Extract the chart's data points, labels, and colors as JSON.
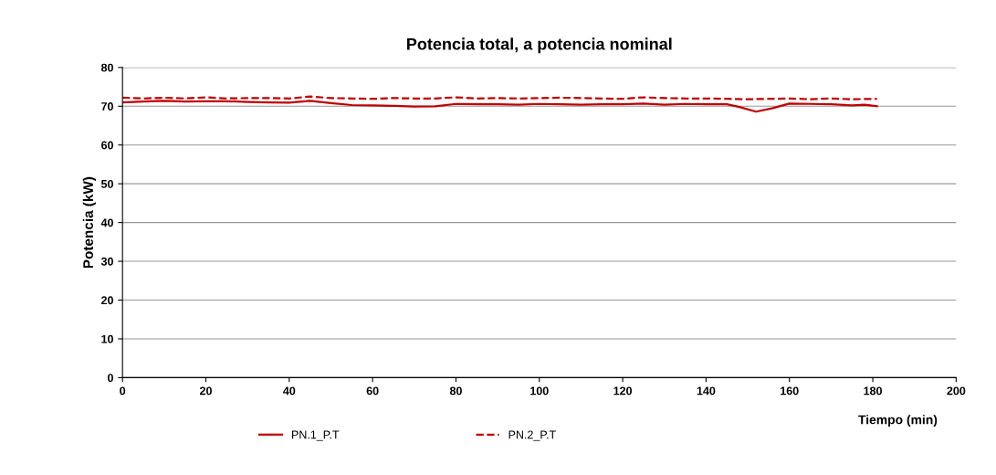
{
  "chart_data": {
    "type": "line",
    "title": "Potencia total, a potencia nominal",
    "xlabel": "Tiempo (min)",
    "ylabel": "Potencia (kW)",
    "xlim": [
      0,
      200
    ],
    "xticks": [
      0,
      20,
      40,
      60,
      80,
      100,
      120,
      140,
      160,
      180,
      200
    ],
    "ylim": [
      0,
      80
    ],
    "yticks": [
      0,
      10,
      20,
      30,
      40,
      50,
      60,
      70,
      80
    ],
    "grid": "y",
    "legend": "bottom left",
    "marker": "none",
    "series": [
      {
        "name": "PN.1_P.T",
        "color": "#c00000",
        "line_style": "solid",
        "x": [
          0,
          5,
          10,
          15,
          20,
          25,
          30,
          35,
          40,
          45,
          50,
          55,
          60,
          65,
          70,
          75,
          80,
          85,
          90,
          95,
          100,
          105,
          110,
          115,
          120,
          125,
          130,
          135,
          140,
          145,
          148,
          152,
          156,
          160,
          165,
          170,
          175,
          178,
          181
        ],
        "values": [
          71.0,
          71.2,
          71.4,
          71.2,
          71.3,
          71.3,
          71.1,
          71.0,
          70.9,
          71.4,
          70.8,
          70.3,
          70.2,
          70.1,
          69.9,
          70.0,
          70.6,
          70.5,
          70.5,
          70.4,
          70.6,
          70.5,
          70.4,
          70.5,
          70.5,
          70.7,
          70.4,
          70.6,
          70.5,
          70.5,
          69.8,
          68.6,
          69.5,
          70.7,
          70.6,
          70.5,
          70.2,
          70.4,
          70.0
        ]
      },
      {
        "name": "PN.2_P.T",
        "color": "#c00000",
        "line_style": "dashed",
        "x": [
          0,
          5,
          10,
          15,
          20,
          25,
          30,
          35,
          40,
          45,
          50,
          55,
          60,
          65,
          70,
          75,
          80,
          85,
          90,
          95,
          100,
          105,
          110,
          115,
          120,
          125,
          130,
          135,
          140,
          145,
          150,
          155,
          160,
          165,
          170,
          175,
          181
        ],
        "values": [
          72.2,
          72.0,
          72.2,
          72.0,
          72.3,
          72.0,
          72.1,
          72.1,
          72.0,
          72.5,
          72.1,
          72.0,
          71.9,
          72.1,
          72.0,
          72.0,
          72.3,
          72.0,
          72.1,
          72.0,
          72.1,
          72.2,
          72.1,
          72.0,
          71.9,
          72.3,
          72.1,
          72.0,
          72.0,
          71.9,
          71.8,
          71.9,
          72.0,
          71.8,
          72.0,
          71.8,
          71.9
        ]
      }
    ]
  }
}
